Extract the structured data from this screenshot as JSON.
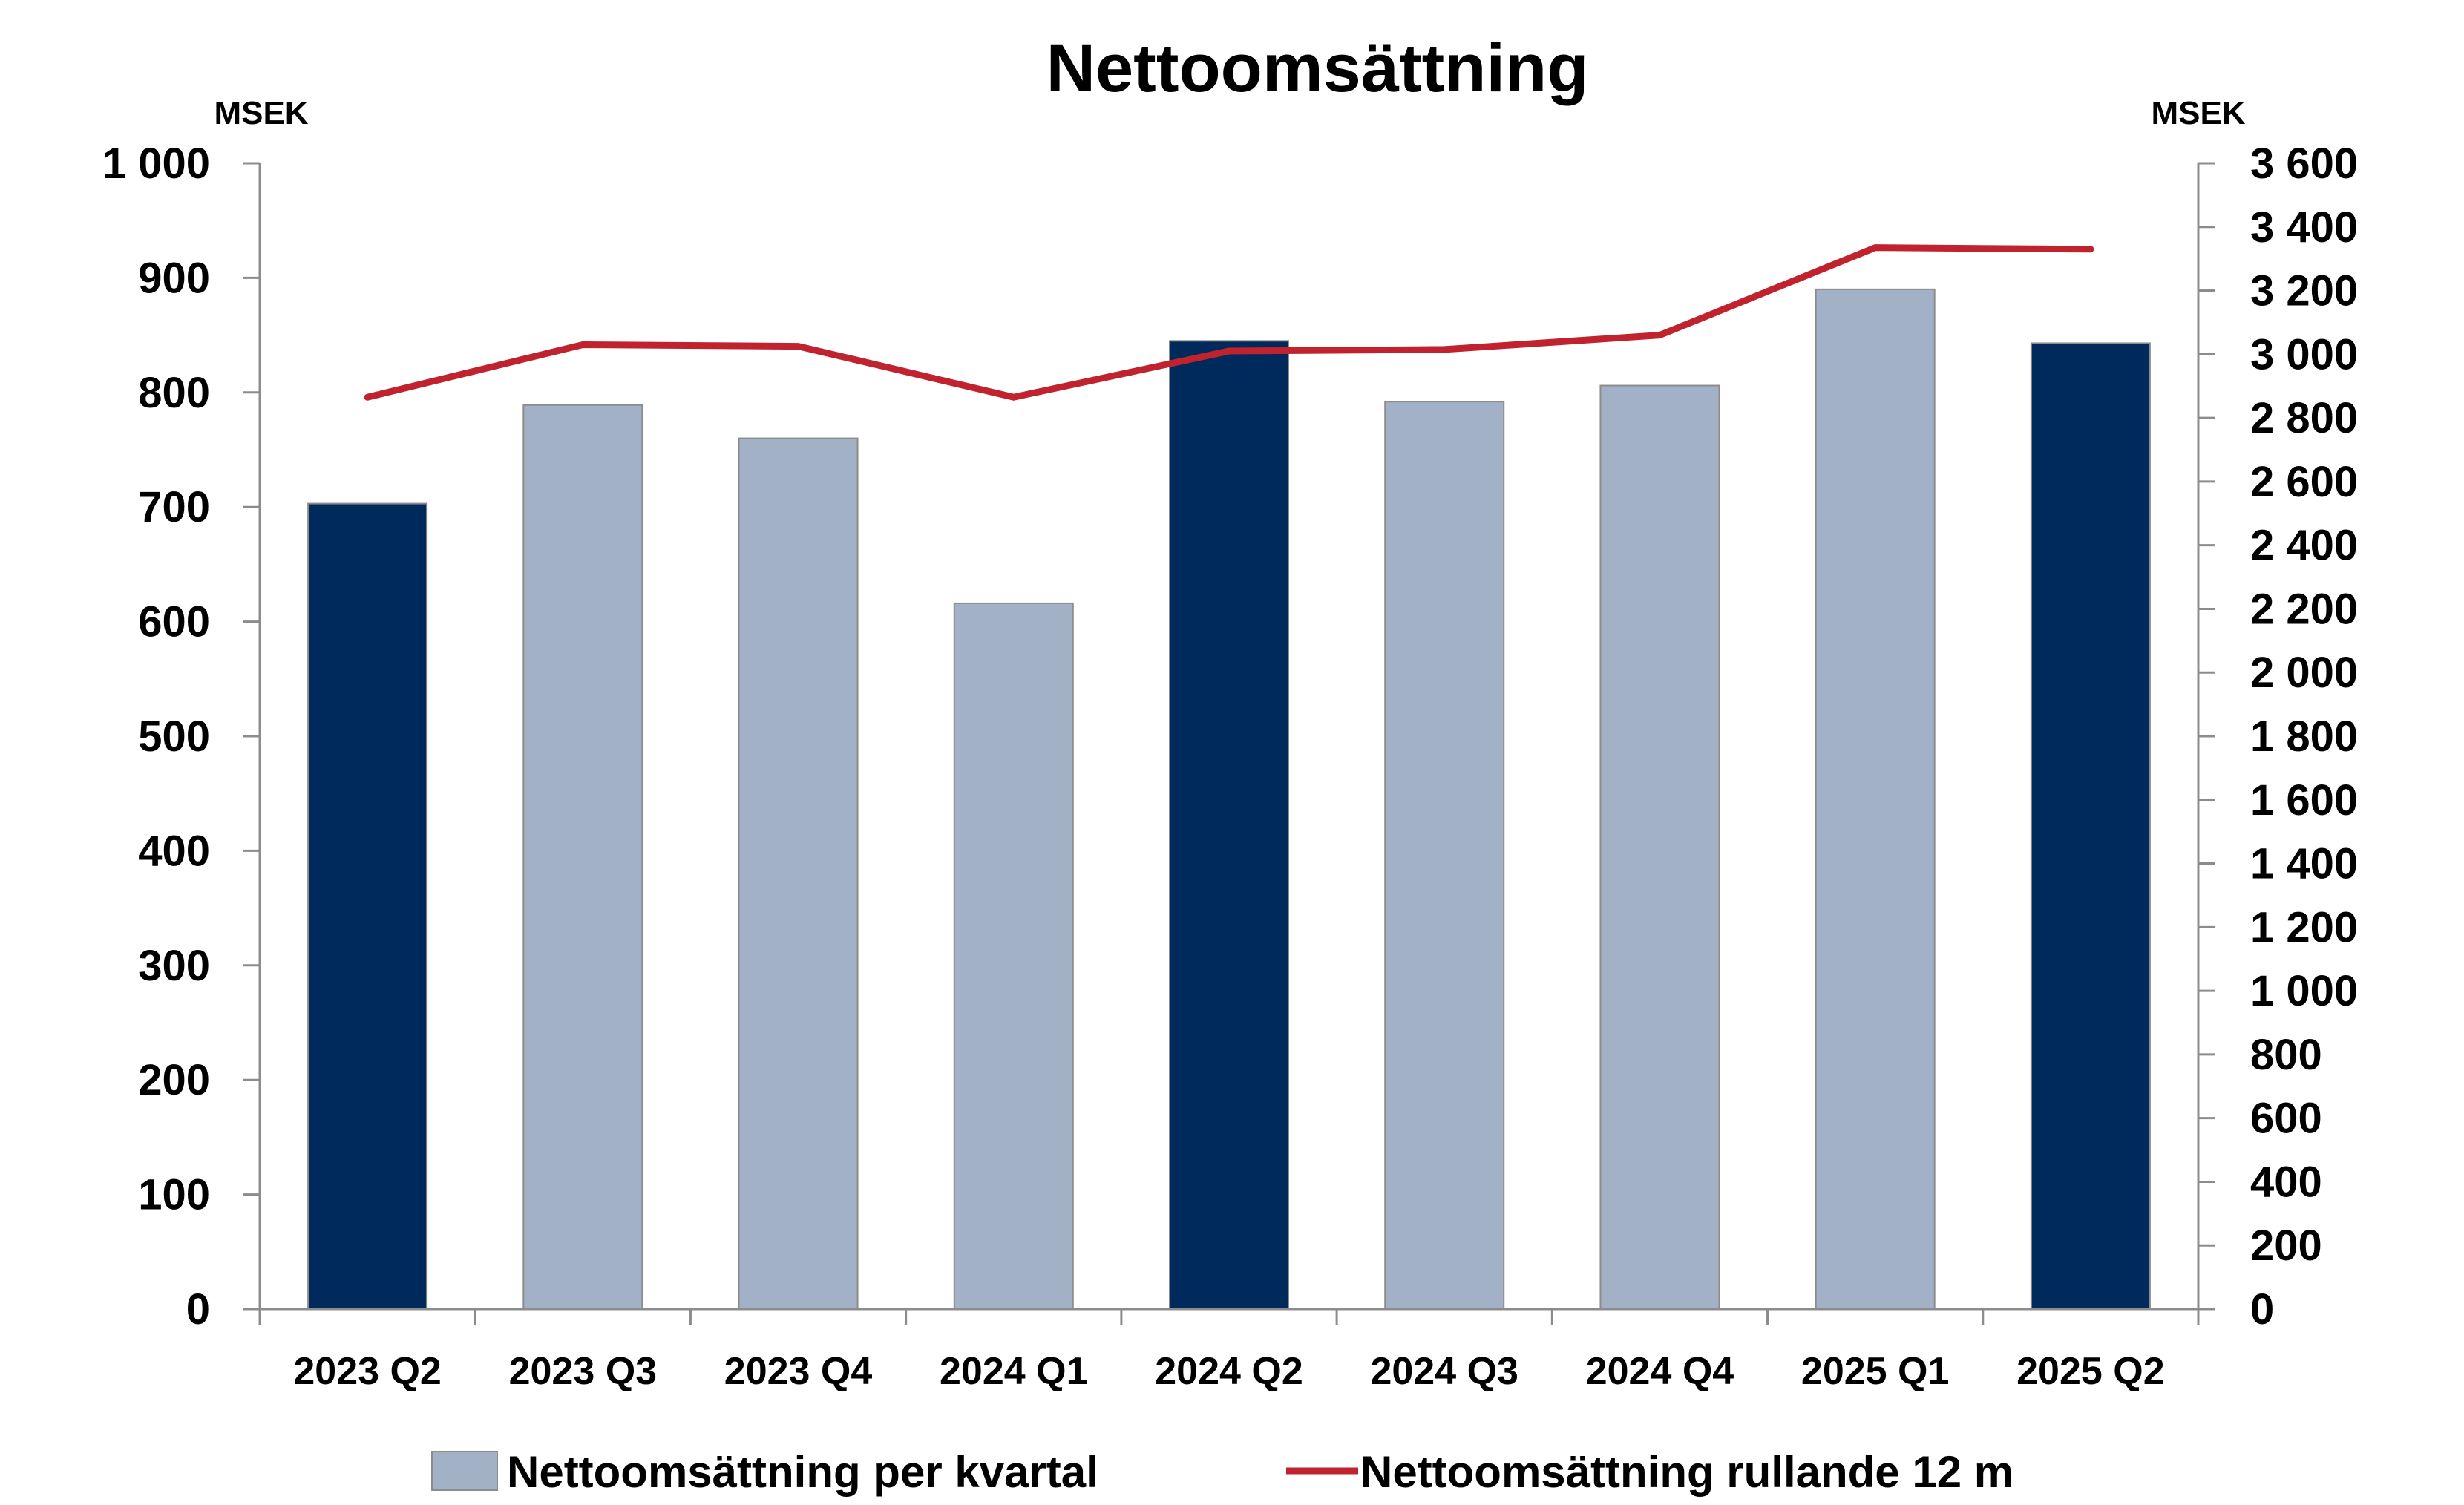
{
  "chart_data": {
    "type": "bar+line",
    "title": "Nettoomsättning",
    "left_axis_unit": "MSEK",
    "right_axis_unit": "MSEK",
    "categories": [
      "2023 Q2",
      "2023 Q3",
      "2023 Q4",
      "2024 Q1",
      "2024 Q2",
      "2024 Q3",
      "2024 Q4",
      "2025 Q1",
      "2025 Q2"
    ],
    "series": [
      {
        "name": "Nettoomsättning per kvartal",
        "type": "bar",
        "axis": "left",
        "values": [
          703,
          789,
          760,
          616,
          845,
          792,
          806,
          890,
          843
        ],
        "highlighted": [
          true,
          false,
          false,
          false,
          true,
          false,
          false,
          false,
          true
        ]
      },
      {
        "name": "Nettoomsättning rullande 12 m",
        "type": "line",
        "axis": "right",
        "values": [
          2865,
          3030,
          3025,
          2865,
          3010,
          3015,
          3060,
          3335,
          3330
        ]
      }
    ],
    "left_ylim": [
      0,
      1000
    ],
    "left_ticks": [
      0,
      100,
      200,
      300,
      400,
      500,
      600,
      700,
      800,
      900,
      1000
    ],
    "left_tick_labels": [
      "0",
      "100",
      "200",
      "300",
      "400",
      "500",
      "600",
      "700",
      "800",
      "900",
      "1 000"
    ],
    "right_ylim": [
      0,
      3600
    ],
    "right_ticks": [
      0,
      200,
      400,
      600,
      800,
      1000,
      1200,
      1400,
      1600,
      1800,
      2000,
      2200,
      2400,
      2600,
      2800,
      3000,
      3200,
      3400,
      3600
    ],
    "right_tick_labels": [
      "0",
      "200",
      "400",
      "600",
      "800",
      "1 000",
      "1 200",
      "1 400",
      "1 600",
      "1 800",
      "2 000",
      "2 200",
      "2 400",
      "2 600",
      "2 800",
      "3 000",
      "3 200",
      "3 400",
      "3 600"
    ],
    "grid": false,
    "legend_position": "bottom",
    "colors": {
      "bar_highlight": "#002A5C",
      "bar_normal": "#A3B1C7",
      "bar_edge": "#8C8C8C",
      "line": "#C0222E",
      "axis": "#8C8C8C"
    }
  }
}
